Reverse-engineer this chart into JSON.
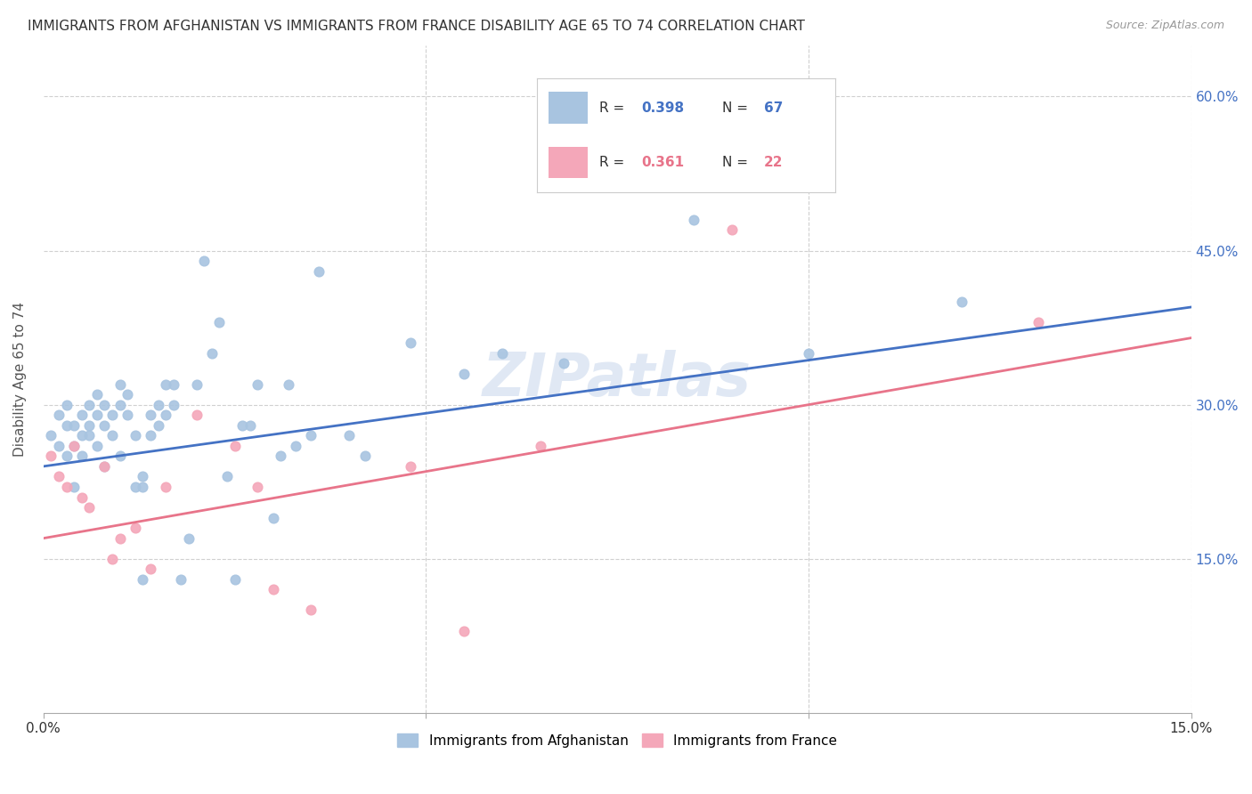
{
  "title": "IMMIGRANTS FROM AFGHANISTAN VS IMMIGRANTS FROM FRANCE DISABILITY AGE 65 TO 74 CORRELATION CHART",
  "source": "Source: ZipAtlas.com",
  "ylabel": "Disability Age 65 to 74",
  "xmin": 0.0,
  "xmax": 0.15,
  "ymin": 0.0,
  "ymax": 0.65,
  "afghanistan_color": "#a8c4e0",
  "france_color": "#f4a7b9",
  "afghanistan_line_color": "#4472c4",
  "france_line_color": "#e8748a",
  "right_tick_color": "#4472c4",
  "R_afghanistan": "0.398",
  "N_afghanistan": "67",
  "R_france": "0.361",
  "N_france": "22",
  "afghanistan_x": [
    0.001,
    0.002,
    0.002,
    0.003,
    0.003,
    0.003,
    0.004,
    0.004,
    0.004,
    0.005,
    0.005,
    0.005,
    0.006,
    0.006,
    0.006,
    0.007,
    0.007,
    0.007,
    0.008,
    0.008,
    0.008,
    0.009,
    0.009,
    0.01,
    0.01,
    0.01,
    0.011,
    0.011,
    0.012,
    0.012,
    0.013,
    0.013,
    0.013,
    0.014,
    0.014,
    0.015,
    0.015,
    0.016,
    0.016,
    0.017,
    0.017,
    0.018,
    0.019,
    0.02,
    0.021,
    0.022,
    0.023,
    0.024,
    0.025,
    0.026,
    0.027,
    0.028,
    0.03,
    0.031,
    0.032,
    0.033,
    0.035,
    0.036,
    0.04,
    0.042,
    0.048,
    0.055,
    0.06,
    0.068,
    0.085,
    0.1,
    0.12
  ],
  "afghanistan_y": [
    0.27,
    0.29,
    0.26,
    0.28,
    0.3,
    0.25,
    0.26,
    0.28,
    0.22,
    0.29,
    0.27,
    0.25,
    0.28,
    0.3,
    0.27,
    0.29,
    0.31,
    0.26,
    0.3,
    0.28,
    0.24,
    0.27,
    0.29,
    0.3,
    0.32,
    0.25,
    0.31,
    0.29,
    0.27,
    0.22,
    0.22,
    0.23,
    0.13,
    0.29,
    0.27,
    0.28,
    0.3,
    0.29,
    0.32,
    0.3,
    0.32,
    0.13,
    0.17,
    0.32,
    0.44,
    0.35,
    0.38,
    0.23,
    0.13,
    0.28,
    0.28,
    0.32,
    0.19,
    0.25,
    0.32,
    0.26,
    0.27,
    0.43,
    0.27,
    0.25,
    0.36,
    0.33,
    0.35,
    0.34,
    0.48,
    0.35,
    0.4
  ],
  "france_x": [
    0.001,
    0.002,
    0.003,
    0.004,
    0.005,
    0.006,
    0.008,
    0.009,
    0.01,
    0.012,
    0.014,
    0.016,
    0.02,
    0.025,
    0.028,
    0.03,
    0.035,
    0.048,
    0.055,
    0.065,
    0.09,
    0.13
  ],
  "france_y": [
    0.25,
    0.23,
    0.22,
    0.26,
    0.21,
    0.2,
    0.24,
    0.15,
    0.17,
    0.18,
    0.14,
    0.22,
    0.29,
    0.26,
    0.22,
    0.12,
    0.1,
    0.24,
    0.08,
    0.26,
    0.47,
    0.38
  ],
  "afghanistan_trend_x": [
    0.0,
    0.15
  ],
  "afghanistan_trend_y": [
    0.24,
    0.395
  ],
  "france_trend_x": [
    0.0,
    0.15
  ],
  "france_trend_y": [
    0.17,
    0.365
  ],
  "watermark": "ZIPatlas",
  "bg_color": "#ffffff",
  "grid_color": "#d0d0d0",
  "legend_label_1": "Immigrants from Afghanistan",
  "legend_label_2": "Immigrants from France"
}
